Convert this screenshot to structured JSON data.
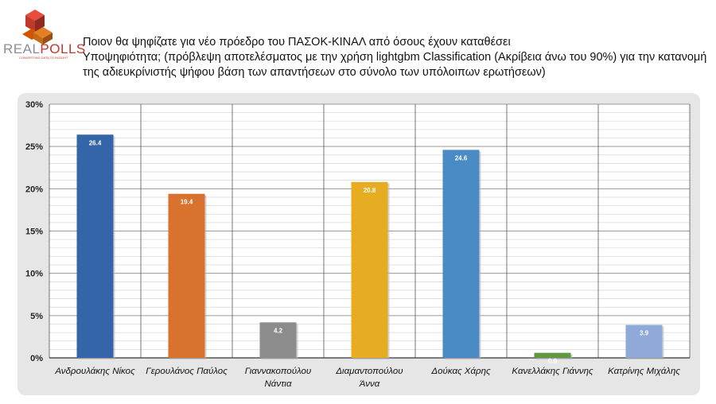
{
  "brand": {
    "name_a": "REAL",
    "name_b": "POLLS",
    "tagline": "CONVERTING DATA TO INSIGHT"
  },
  "title": {
    "line1": "Ποιον θα ψηφίζατε για νέο πρόεδρο του ΠΑΣΟΚ-ΚΙΝΑΛ από όσους έχουν καταθέσει",
    "line2_lead": "Υποψηφιότητα;",
    "line2_rest": "(πρόβλεψη αποτελέσματος με την χρήση lightgbm Classification (Ακρίβεια άνω του 90%) για την κατανομή της αδιευκρίνιστής ψήφου βάση των απαντήσεων στο σύνολο των υπόλοιπων ερωτήσεων)"
  },
  "chart_data": {
    "type": "bar",
    "categories": [
      [
        "Ανδρουλάκης Νίκος"
      ],
      [
        "Γερουλάνος Παύλος"
      ],
      [
        "Γιαννακοπούλου",
        "Νάντια"
      ],
      [
        "Διαμαντοπούλου",
        "Άννα"
      ],
      [
        "Δούκας Χάρης"
      ],
      [
        "Κανελλάκης Γιάννης"
      ],
      [
        "Κατρίνης Μιχάλης"
      ]
    ],
    "values": [
      26.4,
      19.4,
      4.2,
      20.8,
      24.6,
      0.6,
      3.9
    ],
    "value_labels": [
      "26.4",
      "19.4",
      "4.2",
      "20.8",
      "24.6",
      "0.6",
      "3.9"
    ],
    "colors": [
      "#3465a8",
      "#d9712f",
      "#8c8c8c",
      "#e6ad22",
      "#4a8bc6",
      "#5f9a3e",
      "#8fa9d8"
    ],
    "ylim": [
      0,
      30
    ],
    "yticks": [
      0,
      5,
      10,
      15,
      20,
      25,
      30
    ],
    "ytick_labels": [
      "0%",
      "5%",
      "10%",
      "15%",
      "20%",
      "25%",
      "30%"
    ],
    "grid": true,
    "legend": "none"
  }
}
